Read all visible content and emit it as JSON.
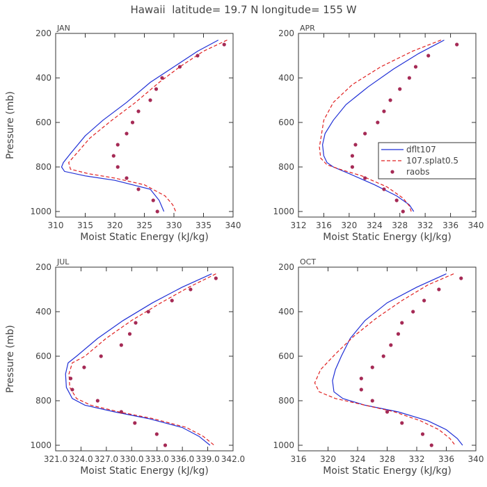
{
  "title": "Hawaii  latitude= 19.7 N longitude= 155 W",
  "colors": {
    "dflt": "#1f2fd6",
    "splat": "#e02020",
    "raobs": "#a52a55"
  },
  "chart_data": [
    {
      "type": "line",
      "title": "JAN",
      "xlabel": "Moist Static Energy (kJ/kg)",
      "ylabel": "Pressure (mb)",
      "xlim": [
        310,
        340
      ],
      "ylim": [
        200,
        1025
      ],
      "y_inverted": true,
      "xticks": [
        310,
        315,
        320,
        325,
        330,
        335,
        340
      ],
      "xticklabels": [
        "310",
        "315",
        "320",
        "325",
        "330",
        "335",
        "340"
      ],
      "yticks": [
        200,
        400,
        600,
        800,
        1000
      ],
      "yticklabels": [
        "200",
        "400",
        "600",
        "800",
        "1000"
      ],
      "legend": null,
      "series": [
        {
          "name": "dflt107",
          "style": "solid",
          "x": [
            337.5,
            334,
            330,
            326,
            322,
            318,
            315,
            312.5,
            311.3,
            311.0,
            311.5,
            315,
            320,
            326,
            327.5,
            328.3
          ],
          "y": [
            230,
            280,
            350,
            420,
            510,
            590,
            660,
            740,
            780,
            800,
            820,
            840,
            860,
            900,
            950,
            1000
          ]
        },
        {
          "name": "107.splat0.5",
          "style": "dashed",
          "x": [
            339,
            335,
            331,
            327.5,
            323.5,
            319.5,
            315.8,
            313.5,
            312.2,
            312.5,
            315.5,
            320,
            325,
            328.5,
            329.8,
            330.3
          ],
          "y": [
            230,
            280,
            350,
            420,
            510,
            590,
            670,
            740,
            780,
            810,
            830,
            850,
            880,
            930,
            970,
            1000
          ]
        },
        {
          "name": "raobs",
          "style": "points",
          "x": [
            338.5,
            334,
            331,
            328,
            327,
            326,
            324,
            323,
            322,
            320.5,
            319.8,
            320.5,
            322,
            324,
            326.5,
            327.2
          ],
          "y": [
            250,
            300,
            350,
            400,
            450,
            500,
            550,
            600,
            650,
            700,
            750,
            800,
            850,
            900,
            950,
            1000
          ]
        }
      ]
    },
    {
      "type": "line",
      "title": "APR",
      "xlabel": "Moist Static Energy (kJ/kg)",
      "ylabel": "",
      "xlim": [
        312,
        340
      ],
      "ylim": [
        200,
        1025
      ],
      "y_inverted": true,
      "xticks": [
        312,
        316,
        320,
        324,
        328,
        332,
        336,
        340
      ],
      "xticklabels": [
        "312",
        "316",
        "320",
        "324",
        "328",
        "332",
        "336",
        "340"
      ],
      "yticks": [
        200,
        400,
        600,
        800,
        1000
      ],
      "yticklabels": [
        "200",
        "400",
        "600",
        "800",
        "1000"
      ],
      "legend": "upper-right-middle",
      "series": [
        {
          "name": "dflt107",
          "style": "solid",
          "x": [
            335,
            331,
            327,
            323,
            319.5,
            317.5,
            316.2,
            315.8,
            316.0,
            316.5,
            317.5,
            320,
            324,
            327.5,
            329.5,
            330.2
          ],
          "y": [
            230,
            290,
            360,
            440,
            520,
            590,
            650,
            700,
            750,
            780,
            800,
            830,
            880,
            930,
            970,
            1000
          ]
        },
        {
          "name": "107.splat0.5",
          "style": "dashed",
          "x": [
            334.5,
            330,
            325,
            320.5,
            317.5,
            316,
            315.6,
            315.3,
            315.5,
            316.5,
            318.5,
            322,
            326,
            328.5,
            329.5,
            329.8
          ],
          "y": [
            230,
            280,
            350,
            430,
            510,
            590,
            660,
            710,
            760,
            790,
            810,
            840,
            890,
            940,
            975,
            1000
          ]
        },
        {
          "name": "raobs",
          "style": "points",
          "x": [
            337,
            332.5,
            330.5,
            329.5,
            328,
            326.5,
            325.5,
            324.5,
            322.5,
            321,
            320.5,
            320.5,
            322.5,
            325.5,
            327.5,
            328.5
          ],
          "y": [
            250,
            300,
            350,
            400,
            450,
            500,
            550,
            600,
            650,
            700,
            750,
            800,
            850,
            900,
            950,
            1000
          ]
        }
      ]
    },
    {
      "type": "line",
      "title": "JUL",
      "xlabel": "Moist Static Energy (kJ/kg)",
      "ylabel": "Pressure (mb)",
      "xlim": [
        321.03,
        342.03
      ],
      "ylim": [
        200,
        1025
      ],
      "y_inverted": true,
      "xticks": [
        321.03,
        324.03,
        327.03,
        330.03,
        333.03,
        336.03,
        339.03,
        342.03
      ],
      "xticklabels": [
        "321.0",
        "324.0",
        "327.0",
        "330.0",
        "333.0",
        "336.0",
        "339.0",
        "342.0"
      ],
      "yticks": [
        200,
        400,
        600,
        800,
        1000
      ],
      "yticklabels": [
        "200",
        "400",
        "600",
        "800",
        "1000"
      ],
      "legend": null,
      "series": [
        {
          "name": "dflt107",
          "style": "solid",
          "x": [
            339.5,
            336,
            332.5,
            329,
            326,
            323.5,
            322.5,
            322.2,
            322.3,
            323,
            324.5,
            328,
            332,
            336,
            338,
            339.3
          ],
          "y": [
            230,
            290,
            360,
            440,
            520,
            600,
            630,
            680,
            740,
            790,
            820,
            850,
            880,
            920,
            960,
            1000
          ]
        },
        {
          "name": "107.splat0.5",
          "style": "dashed",
          "x": [
            340,
            336.8,
            333.5,
            330,
            327,
            324.5,
            323,
            322.6,
            322.7,
            323.5,
            325.2,
            328.5,
            332.5,
            336.5,
            338.5,
            339.8
          ],
          "y": [
            230,
            290,
            360,
            440,
            520,
            600,
            630,
            680,
            740,
            790,
            820,
            850,
            880,
            920,
            960,
            1000
          ]
        },
        {
          "name": "raobs",
          "style": "points",
          "x": [
            340,
            337,
            334.8,
            332,
            330.5,
            329.8,
            328.8,
            326.4,
            324.4,
            322.8,
            323,
            326,
            328.8,
            330.4,
            333,
            334
          ],
          "y": [
            250,
            300,
            350,
            400,
            450,
            500,
            550,
            600,
            650,
            700,
            750,
            800,
            850,
            900,
            950,
            1000
          ]
        }
      ]
    },
    {
      "type": "line",
      "title": "OCT",
      "xlabel": "Moist Static Energy (kJ/kg)",
      "ylabel": "",
      "xlim": [
        316,
        340
      ],
      "ylim": [
        200,
        1025
      ],
      "y_inverted": true,
      "xticks": [
        316,
        320,
        324,
        328,
        332,
        336,
        340
      ],
      "xticklabels": [
        "316",
        "320",
        "324",
        "328",
        "332",
        "336",
        "340"
      ],
      "yticks": [
        200,
        400,
        600,
        800,
        1000
      ],
      "yticklabels": [
        "200",
        "400",
        "600",
        "800",
        "1000"
      ],
      "legend": null,
      "series": [
        {
          "name": "dflt107",
          "style": "solid",
          "x": [
            336,
            332,
            328,
            325,
            323,
            321.8,
            321.0,
            320.6,
            320.8,
            322,
            325,
            329.5,
            333.5,
            336,
            337.5,
            338.2
          ],
          "y": [
            230,
            290,
            360,
            440,
            520,
            600,
            660,
            710,
            760,
            790,
            820,
            850,
            890,
            930,
            970,
            1000
          ]
        },
        {
          "name": "107.splat0.5",
          "style": "dashed",
          "x": [
            337,
            333.5,
            330,
            326.5,
            323.5,
            321,
            319,
            318.2,
            318.8,
            321,
            325,
            329,
            332.5,
            335,
            336.5,
            337.2
          ],
          "y": [
            230,
            280,
            350,
            430,
            510,
            590,
            660,
            720,
            760,
            790,
            820,
            850,
            890,
            930,
            970,
            1000
          ]
        },
        {
          "name": "raobs",
          "style": "points",
          "x": [
            338,
            335,
            333,
            331.5,
            330,
            329.5,
            328.5,
            327.5,
            326,
            324.5,
            324.5,
            326,
            328,
            330,
            332.8,
            334
          ],
          "y": [
            250,
            300,
            350,
            400,
            450,
            500,
            550,
            600,
            650,
            700,
            750,
            800,
            850,
            900,
            950,
            1000
          ]
        }
      ]
    }
  ]
}
